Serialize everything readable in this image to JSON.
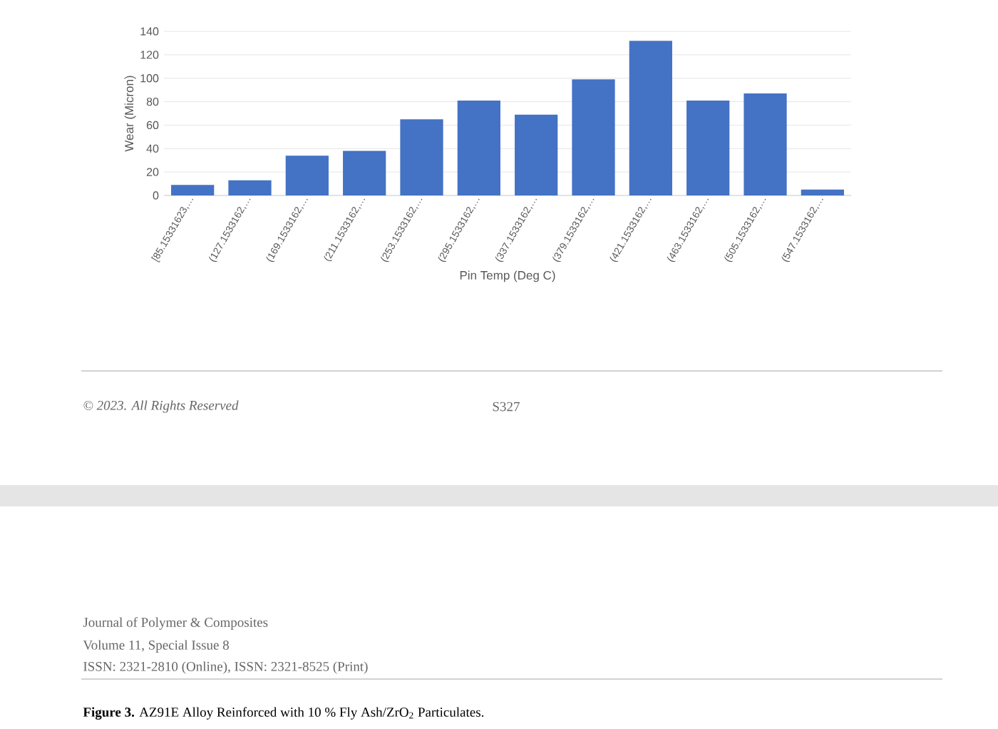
{
  "chart_data": {
    "type": "bar",
    "categories": [
      "[85.15331623,…",
      "(127.1533162,…",
      "(169.1533162,…",
      "(211.1533162,…",
      "(253.1533162,…",
      "(295.1533162,…",
      "(337.1533162,…",
      "(379.1533162,…",
      "(421.1533162,…",
      "(463.1533162,…",
      "(505.1533162,…",
      "(547.1533162,…"
    ],
    "values": [
      9,
      13,
      34,
      38,
      65,
      81,
      69,
      99,
      132,
      81,
      87,
      5
    ],
    "color": "#4472c4",
    "xlabel": "Pin Temp (Deg C)",
    "ylabel": "Wear (Micron)",
    "ylim": [
      0,
      140
    ],
    "yticks": [
      0,
      20,
      40,
      60,
      80,
      100,
      120,
      140
    ],
    "grid": "y",
    "annotations": [
      "© 2023. All Rights Reserved",
      "S327",
      "Journal of Polymer & Composites",
      "Volume 11, Special Issue 8",
      "ISSN: 2321-2810 (Online), ISSN: 2321-8525 (Print)",
      "**Figure 3.** AZ91E Alloy Reinforced with 10 % Fly Ash/ZrO$_{2}$ Particulates."
    ]
  }
}
